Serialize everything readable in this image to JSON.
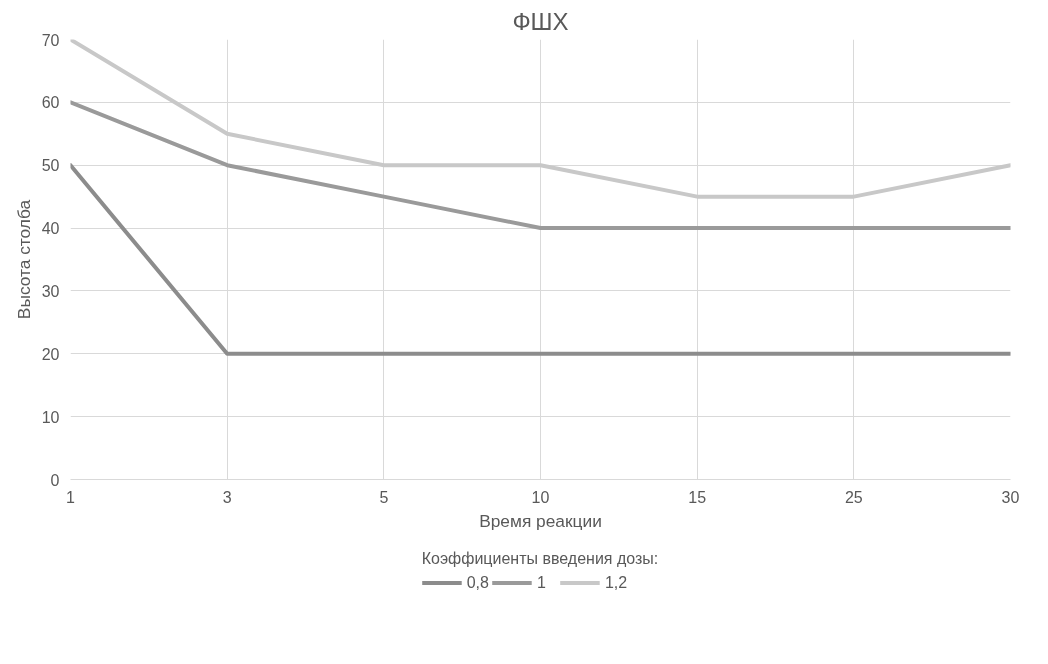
{
  "chart_data": {
    "type": "line",
    "title": "ФШХ",
    "xlabel": "Время реакции",
    "ylabel": "Высота столба",
    "legend_title": "Коэффициенты введения дозы:",
    "categories": [
      "1",
      "3",
      "5",
      "10",
      "15",
      "25",
      "30"
    ],
    "series": [
      {
        "name": "0,8",
        "color": "#8c8c8c",
        "values": [
          50,
          20,
          20,
          20,
          20,
          20,
          20
        ]
      },
      {
        "name": "1",
        "color": "#9a9a9a",
        "values": [
          60,
          50,
          45,
          40,
          40,
          40,
          40
        ]
      },
      {
        "name": "1,2",
        "color": "#c8c8c8",
        "values": [
          70,
          55,
          50,
          50,
          45,
          45,
          50
        ]
      }
    ],
    "ylim": [
      0,
      70
    ],
    "yticks": [
      0,
      10,
      20,
      30,
      40,
      50,
      60,
      70
    ],
    "grid": true,
    "legend": "bottom",
    "marker": "none",
    "line_style": "solid"
  }
}
